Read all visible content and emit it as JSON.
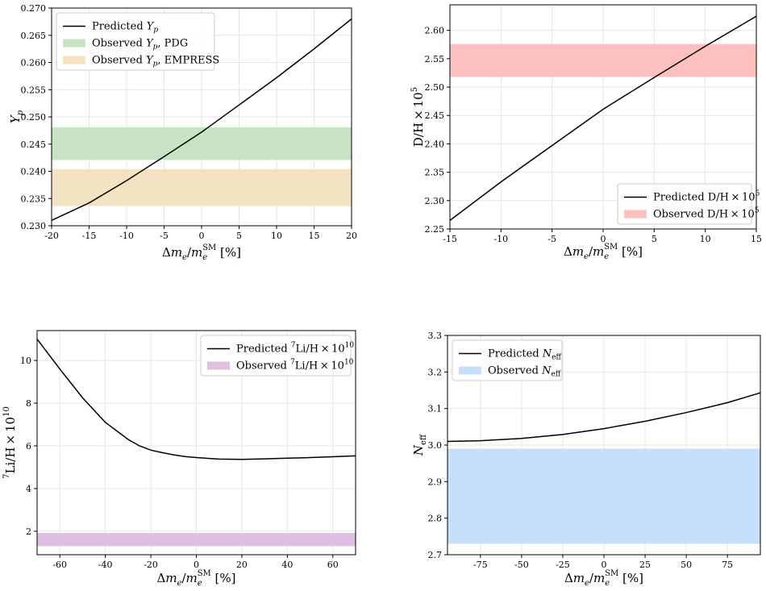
{
  "chart_data": [
    {
      "type": "line",
      "panel": "top-left",
      "xlim": [
        -20,
        20
      ],
      "ylim": [
        0.23,
        0.27
      ],
      "xticks": [
        -20,
        -15,
        -10,
        -5,
        0,
        5,
        10,
        15,
        20
      ],
      "yticks": [
        0.23,
        0.235,
        0.24,
        0.245,
        0.25,
        0.255,
        0.26,
        0.265,
        0.27
      ],
      "xtick_labels": [
        "-20",
        "-15",
        "-10",
        "-5",
        "0",
        "5",
        "10",
        "15",
        "20"
      ],
      "ytick_labels": [
        "0.230",
        "0.235",
        "0.240",
        "0.245",
        "0.250",
        "0.255",
        "0.260",
        "0.265",
        "0.270"
      ],
      "xlabel": "Δm_e/m_e^SM [%]",
      "ylabel": "Y_p",
      "grid": true,
      "legend_position": "top-left",
      "series": [
        {
          "name": "Predicted Y_p",
          "kind": "line",
          "color": "#000000",
          "x": [
            -20,
            -15,
            -10,
            -5,
            0,
            5,
            10,
            15,
            20
          ],
          "y": [
            0.231,
            0.2342,
            0.2383,
            0.2427,
            0.2472,
            0.2522,
            0.2572,
            0.2625,
            0.268
          ]
        }
      ],
      "bands": [
        {
          "name": "Observed Y_p, PDG",
          "color": "#c8e2c5",
          "ymin": 0.2421,
          "ymax": 0.2481
        },
        {
          "name": "Observed Y_p, EMPRESS",
          "color": "#f3e3c2",
          "ymin": 0.2336,
          "ymax": 0.2404
        }
      ],
      "legend": [
        {
          "label": "Predicted Y",
          "sub": "p",
          "suffix": "",
          "kind": "line"
        },
        {
          "label": "Observed Y",
          "sub": "p",
          "suffix": ", PDG",
          "kind": "band"
        },
        {
          "label": "Observed Y",
          "sub": "p",
          "suffix": ", EMPRESS",
          "kind": "band"
        }
      ]
    },
    {
      "type": "line",
      "panel": "top-right",
      "xlim": [
        -15,
        15
      ],
      "ylim": [
        2.25,
        2.645
      ],
      "xticks": [
        -15,
        -10,
        -5,
        0,
        5,
        10,
        15
      ],
      "yticks": [
        2.25,
        2.3,
        2.35,
        2.4,
        2.45,
        2.5,
        2.55,
        2.6
      ],
      "xtick_labels": [
        "-15",
        "-10",
        "-5",
        "0",
        "5",
        "10",
        "15"
      ],
      "ytick_labels": [
        "2.25",
        "2.30",
        "2.35",
        "2.40",
        "2.45",
        "2.50",
        "2.55",
        "2.60"
      ],
      "xlabel": "Δm_e/m_e^SM [%]",
      "ylabel": "D/H × 10^5",
      "grid": true,
      "legend_position": "bottom-right",
      "series": [
        {
          "name": "Predicted D/H × 10^5",
          "kind": "line",
          "color": "#000000",
          "x": [
            -15,
            -10,
            -5,
            0,
            5,
            10,
            15
          ],
          "y": [
            2.265,
            2.333,
            2.397,
            2.461,
            2.517,
            2.572,
            2.625
          ]
        }
      ],
      "bands": [
        {
          "name": "Observed D/H × 10^5",
          "color": "#ffc0c0",
          "ymin": 2.518,
          "ymax": 2.576
        }
      ],
      "legend": [
        {
          "label": "Predicted D/H × 10",
          "sup": "5",
          "kind": "line"
        },
        {
          "label": "Observed D/H × 10",
          "sup": "5",
          "kind": "band"
        }
      ]
    },
    {
      "type": "line",
      "panel": "bottom-left",
      "xlim": [
        -70,
        70
      ],
      "ylim": [
        0.9,
        11.4
      ],
      "xticks": [
        -60,
        -40,
        -20,
        0,
        20,
        40,
        60
      ],
      "yticks": [
        2,
        4,
        6,
        8,
        10
      ],
      "xtick_labels": [
        "-60",
        "-40",
        "-20",
        "0",
        "20",
        "40",
        "60"
      ],
      "ytick_labels": [
        "2",
        "4",
        "6",
        "8",
        "10"
      ],
      "xlabel": "Δm_e/m_e^SM [%]",
      "ylabel": "7Li/H × 10^10",
      "grid": true,
      "legend_position": "top-right",
      "series": [
        {
          "name": "Predicted 7Li/H × 10^10",
          "kind": "line",
          "color": "#000000",
          "x": [
            -70,
            -60,
            -50,
            -40,
            -30,
            -25,
            -20,
            -15,
            -10,
            -5,
            0,
            10,
            20,
            30,
            40,
            50,
            60,
            70
          ],
          "y": [
            11.0,
            9.6,
            8.25,
            7.1,
            6.3,
            6.0,
            5.8,
            5.68,
            5.58,
            5.5,
            5.45,
            5.38,
            5.37,
            5.39,
            5.42,
            5.45,
            5.49,
            5.53
          ]
        }
      ],
      "bands": [
        {
          "name": "Observed 7Li/H × 10^10",
          "color": "#dec1e0",
          "ymin": 1.3,
          "ymax": 1.92
        }
      ],
      "legend": [
        {
          "pre": "Predicted ",
          "presup": "7",
          "label": "Li/H × 10",
          "sup": "10",
          "kind": "line"
        },
        {
          "pre": "Observed ",
          "presup": "7",
          "label": "Li/H × 10",
          "sup": "10",
          "kind": "band"
        }
      ]
    },
    {
      "type": "line",
      "panel": "bottom-right",
      "xlim": [
        -95,
        95
      ],
      "ylim": [
        2.7,
        3.3
      ],
      "xticks": [
        -75,
        -50,
        -25,
        0,
        25,
        50,
        75
      ],
      "yticks": [
        2.7,
        2.8,
        2.9,
        3.0,
        3.1,
        3.2,
        3.3
      ],
      "xtick_labels": [
        "-75",
        "-50",
        "-25",
        "0",
        "25",
        "50",
        "75"
      ],
      "ytick_labels": [
        "2.7",
        "2.8",
        "2.9",
        "3.0",
        "3.1",
        "3.2",
        "3.3"
      ],
      "xlabel": "Δm_e/m_e^SM [%]",
      "ylabel": "N_eff",
      "grid": true,
      "legend_position": "top-left",
      "series": [
        {
          "name": "Predicted N_eff",
          "kind": "line",
          "color": "#000000",
          "x": [
            -95,
            -75,
            -50,
            -25,
            0,
            25,
            50,
            75,
            95
          ],
          "y": [
            3.01,
            3.012,
            3.018,
            3.029,
            3.045,
            3.065,
            3.089,
            3.116,
            3.143
          ]
        }
      ],
      "bands": [
        {
          "name": "Observed N_eff",
          "color": "#c5e0fb",
          "ymin": 2.73,
          "ymax": 2.99
        }
      ],
      "legend": [
        {
          "label": "Predicted N",
          "sub": "eff",
          "kind": "line"
        },
        {
          "label": "Observed N",
          "sub": "eff",
          "kind": "band"
        }
      ]
    }
  ]
}
